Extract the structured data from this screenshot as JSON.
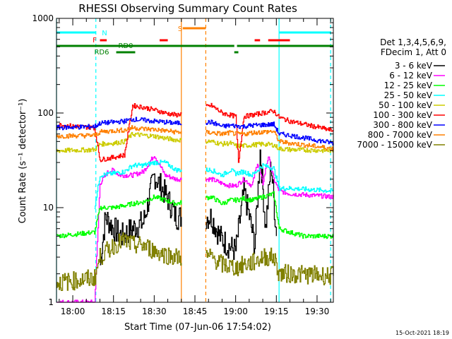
{
  "chart_data": {
    "type": "line",
    "title": "RHESSI Observing Summary Count Rates",
    "xlabel": "Start Time (07-Jun-06 17:54:02)",
    "ylabel": "Count Rate (s⁻¹ detector⁻¹)",
    "yscale": "log",
    "ylim": [
      1,
      1000
    ],
    "xlim_minutes": [
      -6,
      96
    ],
    "x_ticks": [
      {
        "m": 0,
        "label": "18:00"
      },
      {
        "m": 15,
        "label": "18:15"
      },
      {
        "m": 30,
        "label": "18:30"
      },
      {
        "m": 45,
        "label": "18:45"
      },
      {
        "m": 60,
        "label": "19:00"
      },
      {
        "m": 75,
        "label": "19:15"
      },
      {
        "m": 90,
        "label": "19:30"
      }
    ],
    "y_ticks": [
      {
        "v": 1,
        "label": "1"
      },
      {
        "v": 10,
        "label": "10"
      },
      {
        "v": 100,
        "label": "100"
      },
      {
        "v": 1000,
        "label": "1000"
      }
    ],
    "legend_header": [
      "Det 1,3,4,5,6,9,",
      "FDecim 1, Att 0"
    ],
    "legend_placement": "right",
    "timestamp": "15-Oct-2021 18:19",
    "gaps": [
      {
        "start": 40,
        "end": 49
      }
    ],
    "markers": [
      {
        "m": 40,
        "color": "#ff8000",
        "style": "solid"
      },
      {
        "m": 49,
        "color": "#ff8000",
        "style": "dashed"
      },
      {
        "m": -6,
        "color": "#00ffff",
        "style": "solid"
      },
      {
        "m": 8.5,
        "color": "#00ffff",
        "style": "dashed"
      },
      {
        "m": 76,
        "color": "#00ffff",
        "style": "solid"
      },
      {
        "m": 95,
        "color": "#00ffff",
        "style": "dashed"
      }
    ],
    "flag_bars": [
      {
        "label": "N",
        "color": "#00ffff",
        "y": 46,
        "segments": [
          [
            -6,
            8.5
          ],
          [
            76,
            95
          ]
        ]
      },
      {
        "label": "S",
        "color": "#ff8000",
        "y": 40,
        "segments": [
          [
            40.5,
            49
          ]
        ]
      },
      {
        "label": "F",
        "color": "#ff0000",
        "y": 57,
        "segments": [
          [
            10,
            12.5
          ],
          [
            32,
            35
          ],
          [
            67,
            69
          ],
          [
            72,
            80
          ]
        ]
      },
      {
        "label": "RD0",
        "color": "#008000",
        "y": 65,
        "segments": [
          [
            -6,
            59.5
          ],
          [
            60.5,
            96
          ]
        ]
      },
      {
        "label": "RD6",
        "color": "#008000",
        "y": 74,
        "segments": [
          [
            16,
            23
          ],
          [
            59.5,
            61
          ]
        ]
      }
    ],
    "series": [
      {
        "name": "3 - 6 keV",
        "color": "#000000",
        "points": [
          [
            10,
            2.5
          ],
          [
            12,
            8
          ],
          [
            15,
            6
          ],
          [
            18,
            5
          ],
          [
            22,
            6
          ],
          [
            26,
            7
          ],
          [
            30,
            22
          ],
          [
            34,
            14
          ],
          [
            38,
            8
          ],
          [
            51,
            8
          ],
          [
            54,
            5
          ],
          [
            57,
            4
          ],
          [
            60,
            3.5
          ],
          [
            63,
            15
          ],
          [
            65,
            8
          ],
          [
            67,
            4
          ],
          [
            69,
            40
          ],
          [
            71,
            6
          ],
          [
            73,
            30
          ],
          [
            75,
            5
          ]
        ]
      },
      {
        "name": "6 - 12 keV",
        "color": "#ff00ff",
        "points": [
          [
            -6,
            1
          ],
          [
            8,
            1
          ],
          [
            10,
            18
          ],
          [
            13,
            24
          ],
          [
            15,
            25
          ],
          [
            17,
            22
          ],
          [
            19,
            22
          ],
          [
            22,
            22
          ],
          [
            26,
            24
          ],
          [
            30,
            36
          ],
          [
            34,
            22
          ],
          [
            38,
            20
          ],
          [
            51,
            20
          ],
          [
            55,
            18
          ],
          [
            58,
            17
          ],
          [
            60,
            17
          ],
          [
            63,
            20
          ],
          [
            66,
            17
          ],
          [
            68,
            30
          ],
          [
            70,
            18
          ],
          [
            72,
            35
          ],
          [
            74,
            20
          ],
          [
            76,
            15
          ],
          [
            80,
            14
          ],
          [
            96,
            13
          ]
        ]
      },
      {
        "name": "12 - 25 keV",
        "color": "#00ff00",
        "points": [
          [
            -6,
            5
          ],
          [
            8,
            5.5
          ],
          [
            10,
            10
          ],
          [
            15,
            10
          ],
          [
            19,
            10.5
          ],
          [
            22,
            11
          ],
          [
            26,
            11.5
          ],
          [
            30,
            13
          ],
          [
            34,
            12
          ],
          [
            38,
            11
          ],
          [
            51,
            13
          ],
          [
            55,
            11
          ],
          [
            58,
            12
          ],
          [
            60,
            12
          ],
          [
            63,
            12.5
          ],
          [
            66,
            12
          ],
          [
            70,
            13
          ],
          [
            74,
            14
          ],
          [
            76,
            6
          ],
          [
            80,
            5.5
          ],
          [
            85,
            5
          ],
          [
            96,
            5
          ]
        ]
      },
      {
        "name": "25 - 50 keV",
        "color": "#00ffff",
        "points": [
          [
            8,
            10
          ],
          [
            10,
            22
          ],
          [
            15,
            23
          ],
          [
            19,
            24
          ],
          [
            22,
            28
          ],
          [
            26,
            28
          ],
          [
            30,
            30
          ],
          [
            34,
            30
          ],
          [
            38,
            25
          ],
          [
            51,
            25
          ],
          [
            55,
            22
          ],
          [
            58,
            25
          ],
          [
            60,
            23
          ],
          [
            63,
            24
          ],
          [
            66,
            22
          ],
          [
            70,
            28
          ],
          [
            74,
            26
          ],
          [
            76,
            16
          ],
          [
            80,
            16
          ],
          [
            96,
            15
          ]
        ]
      },
      {
        "name": "50 - 100 keV",
        "color": "#cccc00",
        "points": [
          [
            -6,
            40
          ],
          [
            8,
            41
          ],
          [
            10,
            47
          ],
          [
            15,
            48
          ],
          [
            19,
            50
          ],
          [
            22,
            60
          ],
          [
            26,
            58
          ],
          [
            30,
            57
          ],
          [
            34,
            54
          ],
          [
            38,
            52
          ],
          [
            51,
            50
          ],
          [
            55,
            47
          ],
          [
            58,
            48
          ],
          [
            60,
            45
          ],
          [
            63,
            45
          ],
          [
            66,
            46
          ],
          [
            70,
            47
          ],
          [
            74,
            46
          ],
          [
            76,
            42
          ],
          [
            80,
            41
          ],
          [
            96,
            40
          ]
        ]
      },
      {
        "name": "100 - 300 keV",
        "color": "#ff0000",
        "points": [
          [
            -6,
            75
          ],
          [
            8,
            70
          ],
          [
            10,
            32
          ],
          [
            15,
            34
          ],
          [
            19,
            36
          ],
          [
            22,
            120
          ],
          [
            26,
            115
          ],
          [
            30,
            108
          ],
          [
            34,
            100
          ],
          [
            38,
            95
          ],
          [
            51,
            120
          ],
          [
            55,
            100
          ],
          [
            58,
            95
          ],
          [
            60,
            92
          ],
          [
            61,
            30
          ],
          [
            63,
            92
          ],
          [
            66,
            95
          ],
          [
            70,
            100
          ],
          [
            74,
            105
          ],
          [
            76,
            90
          ],
          [
            80,
            82
          ],
          [
            96,
            65
          ]
        ]
      },
      {
        "name": "300 - 800 keV",
        "color": "#0000ff",
        "points": [
          [
            -6,
            70
          ],
          [
            8,
            72
          ],
          [
            10,
            78
          ],
          [
            15,
            80
          ],
          [
            19,
            82
          ],
          [
            22,
            86
          ],
          [
            26,
            84
          ],
          [
            30,
            82
          ],
          [
            34,
            80
          ],
          [
            38,
            78
          ],
          [
            51,
            80
          ],
          [
            55,
            72
          ],
          [
            58,
            74
          ],
          [
            60,
            73
          ],
          [
            63,
            72
          ],
          [
            66,
            74
          ],
          [
            70,
            75
          ],
          [
            74,
            76
          ],
          [
            76,
            60
          ],
          [
            80,
            58
          ],
          [
            96,
            48
          ]
        ]
      },
      {
        "name": "800 - 7000 keV",
        "color": "#ff8000",
        "points": [
          [
            -6,
            57
          ],
          [
            8,
            58
          ],
          [
            10,
            63
          ],
          [
            15,
            65
          ],
          [
            19,
            66
          ],
          [
            22,
            70
          ],
          [
            26,
            68
          ],
          [
            30,
            67
          ],
          [
            34,
            65
          ],
          [
            38,
            63
          ],
          [
            51,
            62
          ],
          [
            55,
            60
          ],
          [
            58,
            62
          ],
          [
            60,
            60
          ],
          [
            63,
            60
          ],
          [
            66,
            62
          ],
          [
            70,
            63
          ],
          [
            74,
            64
          ],
          [
            76,
            50
          ],
          [
            80,
            48
          ],
          [
            96,
            42
          ]
        ]
      },
      {
        "name": "7000 - 15000 keV",
        "color": "#808000",
        "points": [
          [
            -6,
            1.6
          ],
          [
            8,
            1.8
          ],
          [
            10,
            3
          ],
          [
            15,
            4
          ],
          [
            19,
            4.5
          ],
          [
            22,
            4
          ],
          [
            26,
            4
          ],
          [
            30,
            3.5
          ],
          [
            34,
            3.2
          ],
          [
            38,
            3
          ],
          [
            51,
            3
          ],
          [
            55,
            2.5
          ],
          [
            58,
            2.4
          ],
          [
            60,
            2.3
          ],
          [
            63,
            2.5
          ],
          [
            66,
            2.6
          ],
          [
            70,
            3
          ],
          [
            74,
            3
          ],
          [
            76,
            2
          ],
          [
            80,
            2
          ],
          [
            96,
            1.9
          ]
        ]
      }
    ]
  }
}
